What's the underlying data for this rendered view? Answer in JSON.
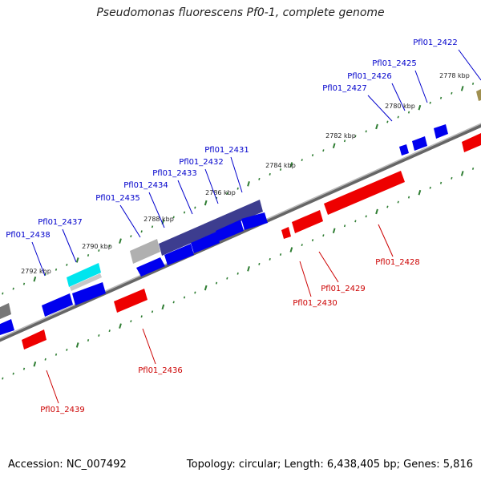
{
  "title": "Pseudomonas fluorescens Pf0-1, complete genome",
  "footer": {
    "accession": "Accession: NC_007492",
    "summary": "Topology: circular; Length: 6,438,405 bp; Genes: 5,816"
  },
  "colors": {
    "forward": "#0000ff",
    "reverse": "#ff0000",
    "label_forward": "#0000cc",
    "label_reverse": "#cc0000",
    "backbone": "#777777",
    "tick": "#2e7d32",
    "rrna_feature": "#3a3a8a",
    "trna_feature": "#00e0ee",
    "pseudo_feature": "#aaaaaa"
  },
  "scale_labels": [
    "2778 kbp",
    "2780 kbp",
    "2782 kbp",
    "2784 kbp",
    "2786 kbp",
    "2788 kbp",
    "2790 kbp",
    "2792 kbp"
  ],
  "genes_forward": [
    "Pfl01_2422",
    "Pfl01_2425",
    "Pfl01_2426",
    "Pfl01_2427",
    "Pfl01_2431",
    "Pfl01_2432",
    "Pfl01_2433",
    "Pfl01_2434",
    "Pfl01_2435",
    "Pfl01_2437",
    "Pfl01_2438"
  ],
  "genes_reverse": [
    "Pfl01_2428",
    "Pfl01_2429",
    "Pfl01_2430",
    "Pfl01_2436",
    "Pfl01_2439"
  ]
}
